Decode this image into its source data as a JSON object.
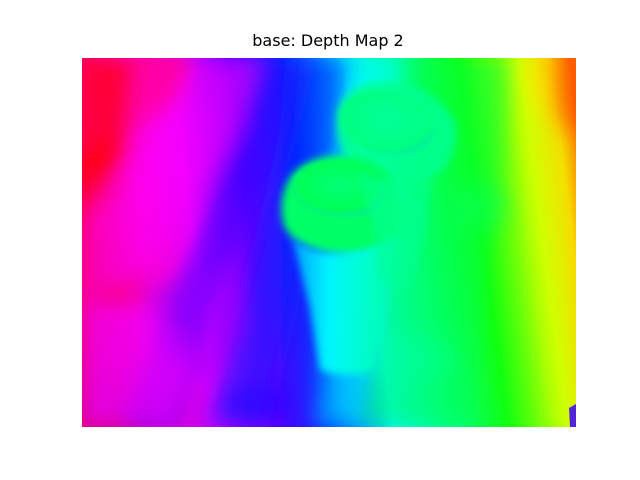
{
  "figure": {
    "title": "base: Depth Map 2"
  },
  "image": {
    "description_kind": "depth map visualized with hue colormap",
    "colormap": "hsv",
    "colors": {
      "red": "#ff0000",
      "magenta": "#ff00ff",
      "blue": "#0000ff",
      "cyan": "#00ffff",
      "green": "#00ff00",
      "yellow": "#ffff00",
      "orange": "#ff6600"
    }
  }
}
